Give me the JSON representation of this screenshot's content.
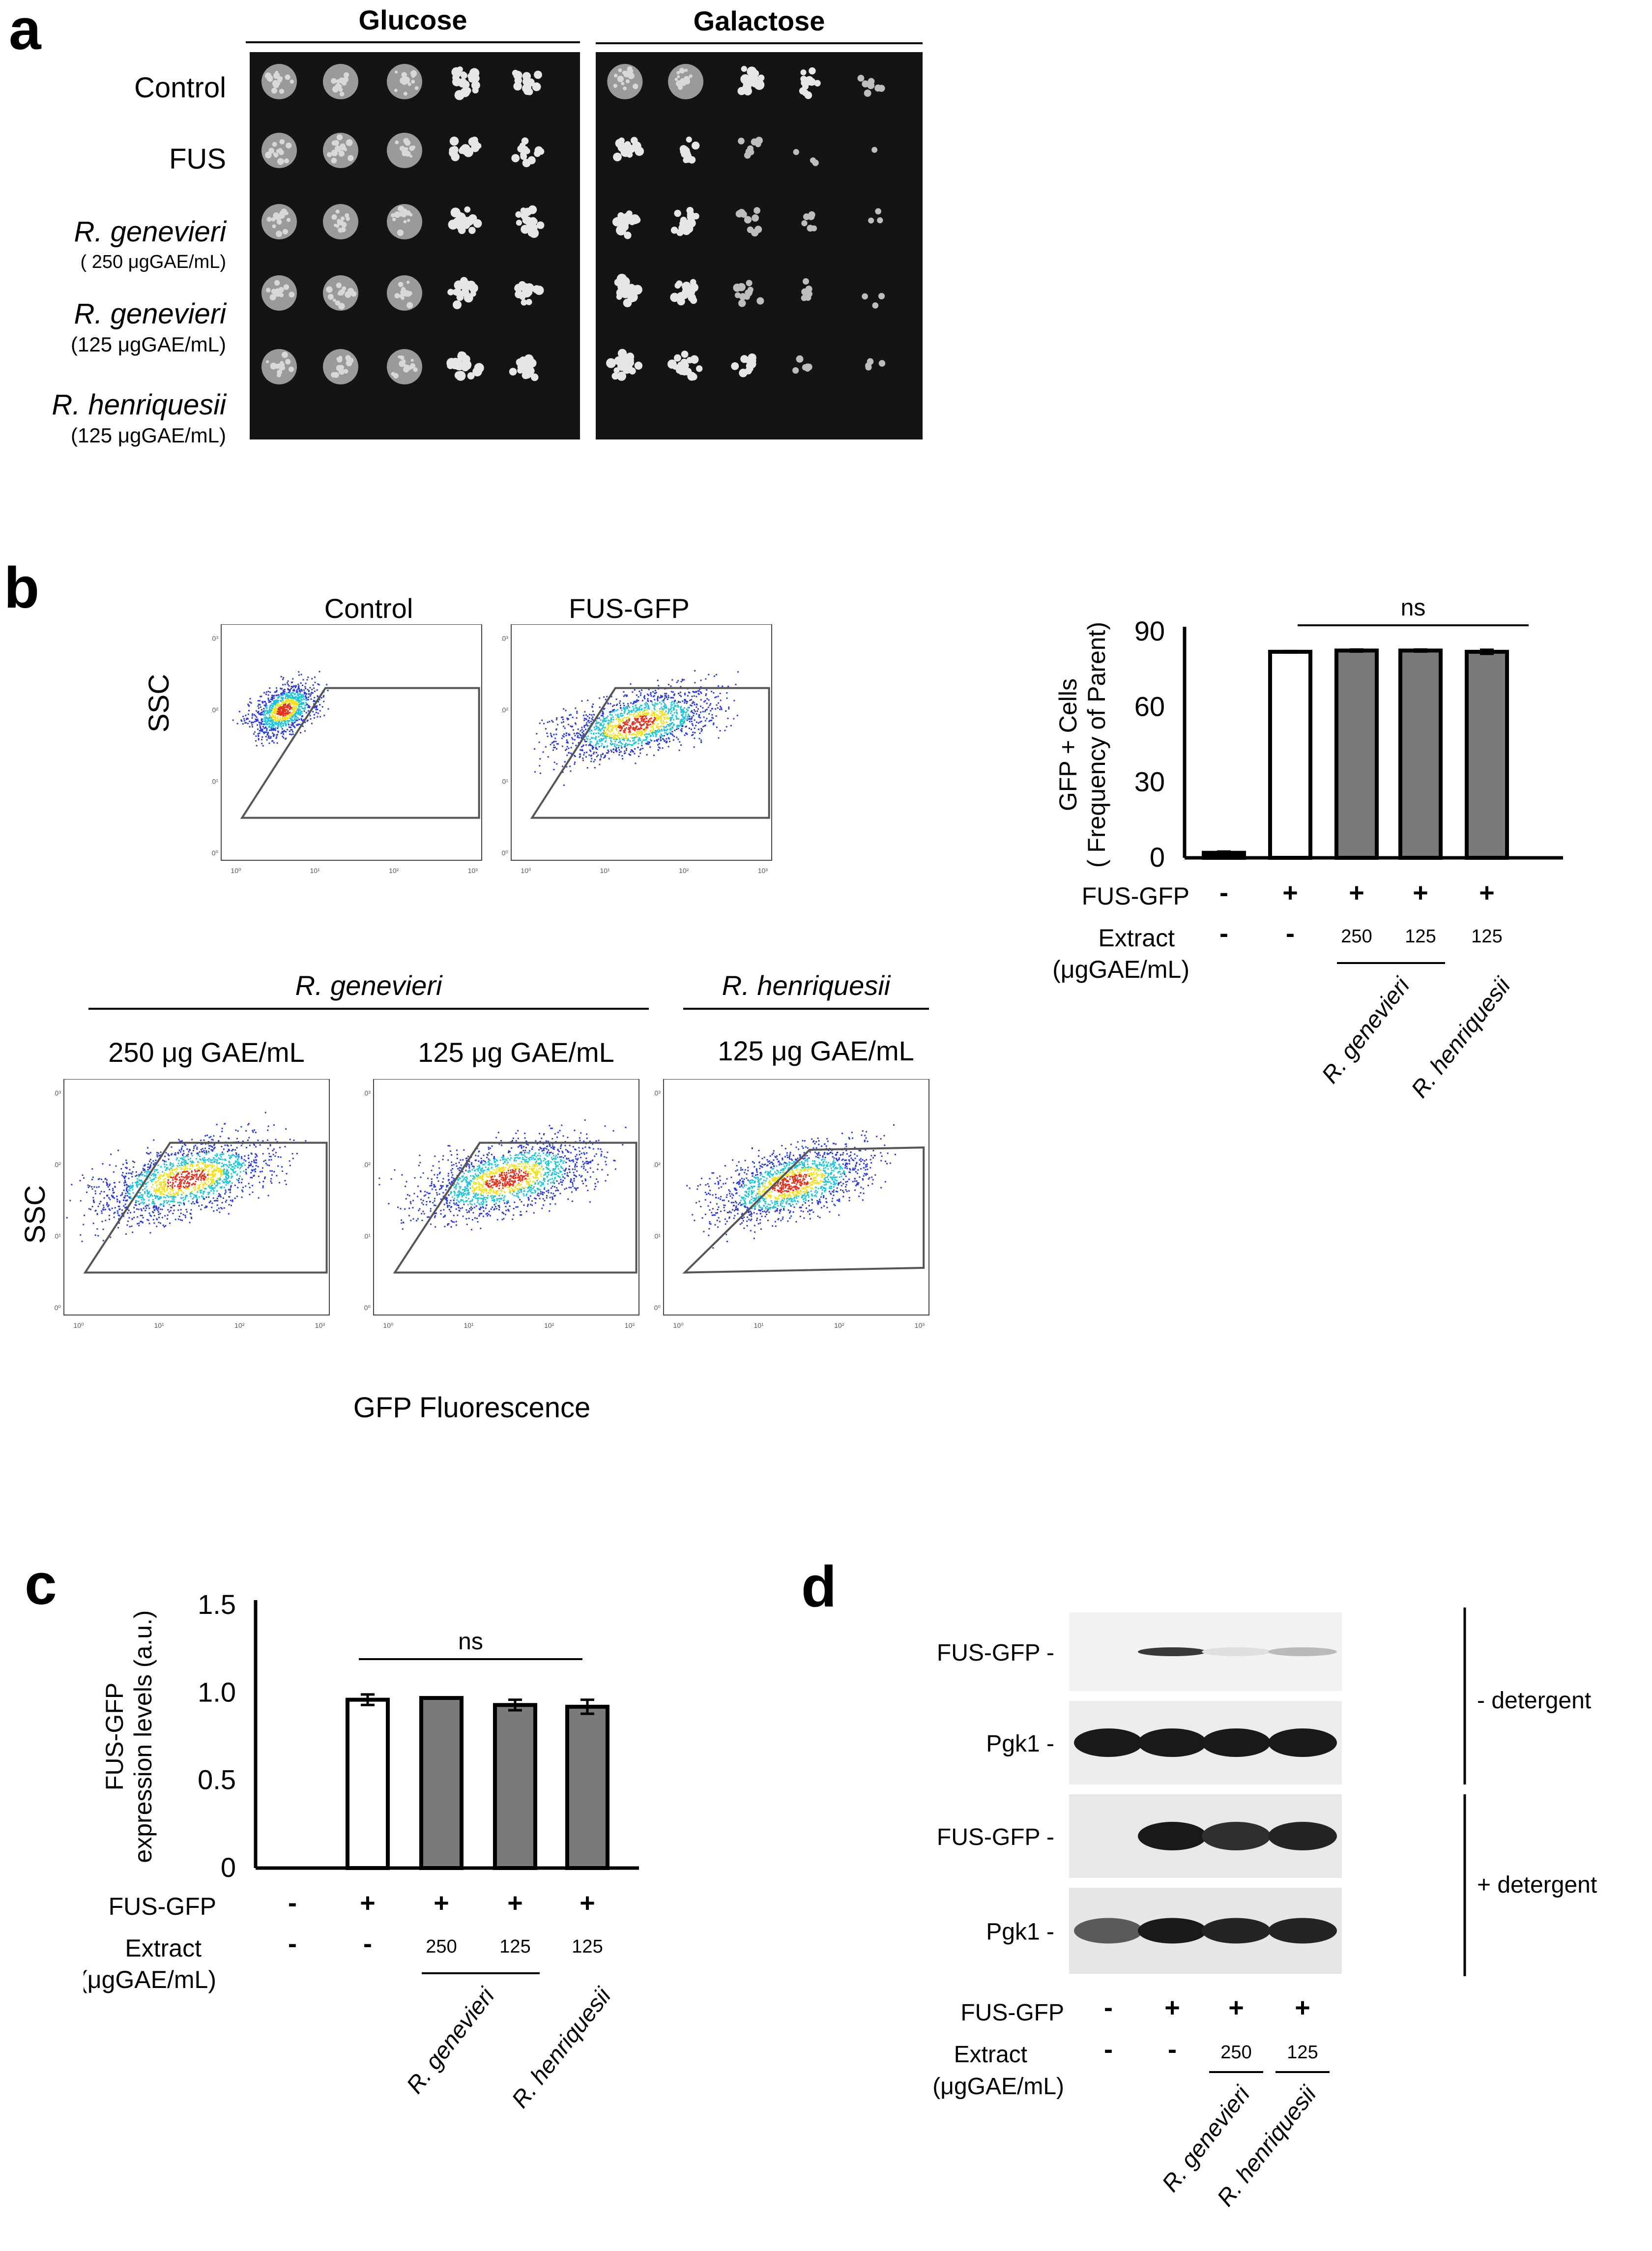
{
  "panel_a": {
    "letter": "a",
    "headers": [
      "Glucose",
      "Galactose"
    ],
    "rows": [
      {
        "name": "Control",
        "sub": ""
      },
      {
        "name": "FUS",
        "sub": ""
      },
      {
        "name": "R. genevieri",
        "sub": "( 250  μgGAE/mL)"
      },
      {
        "name": "R. genevieri",
        "sub": "(125 μgGAE/mL)"
      },
      {
        "name": "R. henriquesii",
        "sub": "(125 μgGAE/mL)"
      }
    ],
    "growth": {
      "glucose": [
        [
          1,
          1,
          1,
          0.85,
          0.7
        ],
        [
          1,
          1,
          1,
          0.85,
          0.6
        ],
        [
          1,
          1,
          1,
          0.85,
          0.75
        ],
        [
          1,
          1,
          1,
          0.9,
          0.85
        ],
        [
          1,
          1,
          1,
          0.9,
          0.85
        ]
      ],
      "galactose": [
        [
          1,
          1,
          0.9,
          0.6,
          0.3
        ],
        [
          0.8,
          0.6,
          0.35,
          0.15,
          0.03
        ],
        [
          0.9,
          0.7,
          0.45,
          0.25,
          0.12
        ],
        [
          0.9,
          0.75,
          0.5,
          0.25,
          0.15
        ],
        [
          0.9,
          0.75,
          0.55,
          0.3,
          0.18
        ]
      ]
    }
  },
  "panel_b": {
    "letter": "b",
    "flow_titles": {
      "control": "Control",
      "fus_gfp": "FUS-GFP",
      "group_genevieri": "R. genevieri",
      "group_henriquesii": "R. henriquesii",
      "gen_250": "250 μg GAE/mL",
      "gen_125": "125 μg GAE/mL",
      "hen_125": "125 μg GAE/mL"
    },
    "y_label": "SSC",
    "x_label": "GFP Fluorescence",
    "tick_labels": [
      "10⁰",
      "10¹",
      "10²",
      "10³",
      "10⁴"
    ],
    "colors": {
      "low": "#2b3bd6",
      "mid": "#1fc4d8",
      "high": "#f1e11e",
      "peak": "#e4311b"
    }
  },
  "chart_data": [
    {
      "type": "bar",
      "panel": "b",
      "ylabel": "GFP + Cells\n( Frequency of Parent)",
      "ylim": [
        0,
        90
      ],
      "yticks": [
        0,
        30,
        60,
        90
      ],
      "values": [
        2,
        82,
        82.5,
        82.5,
        82
      ],
      "errors": [
        0.5,
        0.3,
        0.4,
        0.4,
        0.8
      ],
      "fills": [
        "black",
        "white",
        "gray",
        "gray",
        "gray"
      ],
      "row_labels": {
        "fus_gfp": "FUS-GFP",
        "extract": "Extract",
        "unit": "(μgGAE/mL)"
      },
      "fus_gfp_row": [
        "-",
        "+",
        "+",
        "+",
        "+"
      ],
      "extract_row": [
        "-",
        "-",
        "250",
        "125",
        "125"
      ],
      "groups": [
        "R. genevieri",
        "R. henriquesii"
      ],
      "significance": "ns",
      "colors": {
        "gray": "#7a7a7a"
      }
    },
    {
      "type": "bar",
      "panel": "c",
      "ylabel": "FUS-GFP\nexpression levels (a.u.)",
      "ylim": [
        0,
        1.5
      ],
      "yticks": [
        0,
        0.5,
        1.0,
        1.5
      ],
      "ytick_labels": [
        "0",
        "0.5",
        "1.0",
        "1.5"
      ],
      "values": [
        0,
        0.96,
        0.97,
        0.93,
        0.92
      ],
      "errors": [
        0,
        0.03,
        0.0,
        0.03,
        0.04
      ],
      "fills": [
        "none",
        "white",
        "gray",
        "gray",
        "gray"
      ],
      "row_labels": {
        "fus_gfp": "FUS-GFP",
        "extract": "Extract",
        "unit": "(μgGAE/mL)"
      },
      "fus_gfp_row": [
        "-",
        "+",
        "+",
        "+",
        "+"
      ],
      "extract_row": [
        "-",
        "-",
        "250",
        "125",
        "125"
      ],
      "groups": [
        "R. genevieri",
        "R. henriquesii"
      ],
      "significance": "ns",
      "colors": {
        "gray": "#7a7a7a"
      }
    }
  ],
  "panel_c": {
    "letter": "c"
  },
  "panel_d": {
    "letter": "d",
    "blot_labels": [
      "FUS-GFP",
      "Pgk1",
      "FUS-GFP",
      "Pgk1"
    ],
    "group_labels": [
      "- detergent",
      "+ detergent"
    ],
    "fus_gfp_label": "FUS-GFP",
    "fus_gfp_row": [
      "-",
      "+",
      "+",
      "+"
    ],
    "extract_label": "Extract",
    "unit": "(μgGAE/mL)",
    "extract_row": [
      "-",
      "-",
      "250",
      "125"
    ],
    "groups": [
      "R. genevieri",
      "R. henriquesii"
    ],
    "band_intensity": {
      "fus_minus": [
        0,
        0.85,
        0.08,
        0.25
      ],
      "pgk_minus": [
        1,
        1,
        1,
        1
      ],
      "fus_plus": [
        0,
        1,
        0.9,
        0.95
      ],
      "pgk_plus": [
        0.7,
        1,
        0.95,
        0.95
      ]
    }
  }
}
